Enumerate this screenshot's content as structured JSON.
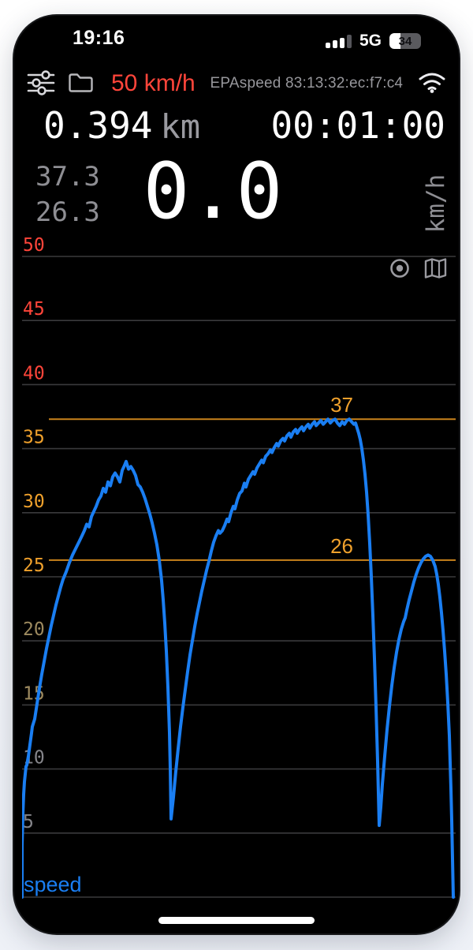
{
  "status_bar": {
    "time": "19:16",
    "network": "5G",
    "battery_percent": "34",
    "signal_bars": 4,
    "signal_filled": 3
  },
  "toolbar": {
    "speed_limit": "50 km/h",
    "device": "EPAspeed 83:13:32:ec:f7:c4"
  },
  "trip": {
    "distance": "0.394",
    "distance_unit": "km",
    "duration": "00:01:00"
  },
  "speed": {
    "max": "37.3",
    "avg": "26.3",
    "current": "0.0",
    "unit": "km/h"
  },
  "legend": {
    "label": "speed"
  },
  "icons": {
    "sliders": "sliders-icon",
    "folder": "folder-icon",
    "wifi": "wifi-icon",
    "record": "record-dot-icon",
    "map": "map-icon"
  },
  "colors": {
    "accent_blue": "#1a7ef2",
    "alert_red": "#ff453a",
    "warn_orange": "#f0a12c",
    "threshold_line": "#c9831c",
    "grid": "#3a3a3c",
    "tick_tan": "#9d8a5f",
    "tick_gray": "#85858a"
  },
  "chart_data": {
    "type": "line",
    "title": "",
    "xlabel": "",
    "ylabel": "km/h",
    "ylim": [
      0,
      50
    ],
    "grid": true,
    "legend_position": "bottom-left",
    "yticks": [
      {
        "v": 50,
        "color": "#ff453a"
      },
      {
        "v": 45,
        "color": "#ff453a"
      },
      {
        "v": 40,
        "color": "#ff453a"
      },
      {
        "v": 35,
        "color": "#f0a12c"
      },
      {
        "v": 30,
        "color": "#f0a12c"
      },
      {
        "v": 25,
        "color": "#f0a12c"
      },
      {
        "v": 20,
        "color": "#9d8a5f"
      },
      {
        "v": 15,
        "color": "#9d8a5f"
      },
      {
        "v": 10,
        "color": "#85858a"
      },
      {
        "v": 5,
        "color": "#85858a"
      }
    ],
    "thresholds": [
      {
        "label": "37",
        "value": 37.3,
        "line_color": "#c9831c",
        "label_color": "#f0a12c"
      },
      {
        "label": "26",
        "value": 26.3,
        "line_color": "#c9831c",
        "label_color": "#f0a12c"
      }
    ],
    "series": [
      {
        "name": "speed",
        "color": "#1a7ef2",
        "points": [
          [
            28,
            0
          ],
          [
            28,
            4
          ],
          [
            29,
            6.5
          ],
          [
            30,
            8
          ],
          [
            31,
            9
          ],
          [
            33,
            10.2
          ],
          [
            34,
            10.3
          ],
          [
            36,
            11
          ],
          [
            38,
            11.9
          ],
          [
            40,
            12.8
          ],
          [
            41,
            13.3
          ],
          [
            44,
            13.9
          ],
          [
            47,
            15.1
          ],
          [
            50,
            16.3
          ],
          [
            53,
            17.4
          ],
          [
            56,
            18.4
          ],
          [
            59,
            19.4
          ],
          [
            62,
            20.3
          ],
          [
            65,
            21.2
          ],
          [
            68,
            22
          ],
          [
            71,
            22.8
          ],
          [
            74,
            23.5
          ],
          [
            77,
            24.2
          ],
          [
            80,
            24.8
          ],
          [
            84,
            25.4
          ],
          [
            88,
            26.1
          ],
          [
            92,
            26.7
          ],
          [
            96,
            27.2
          ],
          [
            100,
            27.7
          ],
          [
            104,
            28.2
          ],
          [
            107,
            28.6
          ],
          [
            110,
            29.1
          ],
          [
            113,
            28.9
          ],
          [
            116,
            29.7
          ],
          [
            119,
            30.1
          ],
          [
            122,
            30.5
          ],
          [
            125,
            31
          ],
          [
            128,
            31.3
          ],
          [
            131,
            31.9
          ],
          [
            134,
            31.6
          ],
          [
            137,
            32.4
          ],
          [
            140,
            32.1
          ],
          [
            143,
            32.8
          ],
          [
            146,
            33.1
          ],
          [
            149,
            32.8
          ],
          [
            152,
            32.4
          ],
          [
            155,
            33.3
          ],
          [
            158,
            33.7
          ],
          [
            160,
            34
          ],
          [
            163,
            33.4
          ],
          [
            166,
            33.6
          ],
          [
            169,
            33.3
          ],
          [
            172,
            32.9
          ],
          [
            175,
            32.2
          ],
          [
            178,
            32
          ],
          [
            181,
            31.6
          ],
          [
            184,
            31.1
          ],
          [
            187,
            30.5
          ],
          [
            190,
            29.9
          ],
          [
            193,
            29.2
          ],
          [
            196,
            28.4
          ],
          [
            199,
            27.5
          ],
          [
            202,
            26.3
          ],
          [
            205,
            24.7
          ],
          [
            207,
            23.2
          ],
          [
            209,
            21.4
          ],
          [
            211,
            19.2
          ],
          [
            213,
            16.4
          ],
          [
            215,
            12.8
          ],
          [
            216,
            10
          ],
          [
            217,
            6.1
          ],
          [
            220,
            7.8
          ],
          [
            223,
            9.8
          ],
          [
            226,
            11.6
          ],
          [
            229,
            13.3
          ],
          [
            232,
            14.8
          ],
          [
            235,
            16.2
          ],
          [
            238,
            17.6
          ],
          [
            241,
            18.9
          ],
          [
            244,
            20
          ],
          [
            247,
            21.1
          ],
          [
            250,
            22.1
          ],
          [
            253,
            23
          ],
          [
            256,
            23.9
          ],
          [
            259,
            24.7
          ],
          [
            262,
            25.5
          ],
          [
            265,
            26.2
          ],
          [
            268,
            27
          ],
          [
            271,
            27.7
          ],
          [
            274,
            28.2
          ],
          [
            277,
            28.6
          ],
          [
            279,
            28.4
          ],
          [
            282,
            28.6
          ],
          [
            285,
            29
          ],
          [
            288,
            29.5
          ],
          [
            290,
            29.3
          ],
          [
            293,
            30
          ],
          [
            296,
            30.5
          ],
          [
            298,
            30.3
          ],
          [
            301,
            31
          ],
          [
            304,
            31.5
          ],
          [
            307,
            31.7
          ],
          [
            310,
            32.3
          ],
          [
            312,
            32
          ],
          [
            315,
            32.6
          ],
          [
            318,
            32.9
          ],
          [
            321,
            33.2
          ],
          [
            323,
            33
          ],
          [
            326,
            33.5
          ],
          [
            329,
            33.8
          ],
          [
            332,
            34.1
          ],
          [
            334,
            33.9
          ],
          [
            337,
            34.4
          ],
          [
            340,
            34.6
          ],
          [
            343,
            34.9
          ],
          [
            345,
            34.7
          ],
          [
            348,
            35.1
          ],
          [
            351,
            35.4
          ],
          [
            353,
            35.2
          ],
          [
            356,
            35.6
          ],
          [
            359,
            35.8
          ],
          [
            361,
            35.6
          ],
          [
            364,
            36
          ],
          [
            367,
            36.2
          ],
          [
            369,
            35.9
          ],
          [
            372,
            36.3
          ],
          [
            375,
            36.5
          ],
          [
            377,
            36.2
          ],
          [
            380,
            36.5
          ],
          [
            383,
            36.7
          ],
          [
            385,
            36.4
          ],
          [
            388,
            36.7
          ],
          [
            391,
            36.9
          ],
          [
            393,
            36.6
          ],
          [
            396,
            36.9
          ],
          [
            399,
            37.1
          ],
          [
            401,
            36.8
          ],
          [
            404,
            37
          ],
          [
            407,
            37.2
          ],
          [
            410,
            36.9
          ],
          [
            413,
            37.1
          ],
          [
            416,
            37.3
          ],
          [
            419,
            37
          ],
          [
            422,
            37.2
          ],
          [
            425,
            37.3
          ],
          [
            428,
            37
          ],
          [
            431,
            36.8
          ],
          [
            434,
            37.1
          ],
          [
            437,
            36.9
          ],
          [
            440,
            37.2
          ],
          [
            443,
            37.3
          ],
          [
            446,
            37.1
          ],
          [
            449,
            36.9
          ],
          [
            451,
            37
          ],
          [
            453,
            36.6
          ],
          [
            455,
            36.2
          ],
          [
            457,
            35.7
          ],
          [
            459,
            35
          ],
          [
            461,
            34.1
          ],
          [
            463,
            33
          ],
          [
            465,
            31.6
          ],
          [
            467,
            29.8
          ],
          [
            469,
            27.6
          ],
          [
            471,
            25
          ],
          [
            473,
            22
          ],
          [
            475,
            18.6
          ],
          [
            477,
            14.8
          ],
          [
            479,
            10.6
          ],
          [
            481,
            5.6
          ],
          [
            483,
            7
          ],
          [
            485,
            8.8
          ],
          [
            488,
            11
          ],
          [
            491,
            13.1
          ],
          [
            494,
            14.9
          ],
          [
            497,
            16.5
          ],
          [
            500,
            17.9
          ],
          [
            503,
            19.1
          ],
          [
            506,
            20.1
          ],
          [
            509,
            20.9
          ],
          [
            512,
            21.5
          ],
          [
            514,
            21.8
          ],
          [
            516,
            22.4
          ],
          [
            519,
            23.2
          ],
          [
            522,
            23.9
          ],
          [
            525,
            24.6
          ],
          [
            528,
            25.2
          ],
          [
            531,
            25.7
          ],
          [
            534,
            26.1
          ],
          [
            537,
            26.4
          ],
          [
            540,
            26.6
          ],
          [
            543,
            26.7
          ],
          [
            546,
            26.6
          ],
          [
            549,
            26.3
          ],
          [
            552,
            25.8
          ],
          [
            554,
            25.2
          ],
          [
            556,
            24.4
          ],
          [
            558,
            23.4
          ],
          [
            560,
            22.2
          ],
          [
            562,
            20.8
          ],
          [
            564,
            19.2
          ],
          [
            566,
            17.4
          ],
          [
            568,
            15.2
          ],
          [
            570,
            12.6
          ],
          [
            571,
            10.5
          ],
          [
            572,
            8.5
          ],
          [
            573,
            6
          ],
          [
            574,
            3
          ],
          [
            575,
            0
          ]
        ]
      }
    ]
  }
}
